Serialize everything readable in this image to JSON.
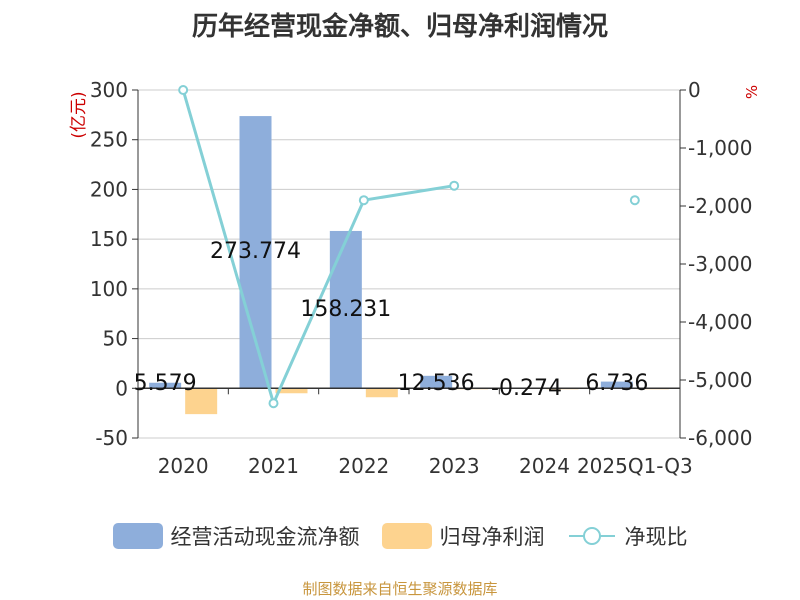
{
  "chart_data": {
    "type": "bar+line",
    "title": "历年经营现金净额、归母净利润情况",
    "categories": [
      "2020",
      "2021",
      "2022",
      "2023",
      "2024",
      "2025Q1-Q3"
    ],
    "series": [
      {
        "name": "经营活动现金流净额",
        "type": "bar",
        "axis": "left",
        "color": "#8eaedb",
        "values": [
          5.579,
          273.774,
          158.231,
          12.536,
          -0.274,
          6.736
        ],
        "labels": [
          "5.579",
          "273.774",
          "158.231",
          "12.536",
          "-0.274",
          "6.736"
        ]
      },
      {
        "name": "归母净利润",
        "type": "bar",
        "axis": "left",
        "color": "#fdd38f",
        "values": [
          -26,
          -5,
          -9,
          -1,
          -1,
          -1
        ]
      },
      {
        "name": "净现比",
        "type": "line",
        "axis": "right",
        "color": "#84d0d6",
        "values": [
          0,
          -5400,
          -1900,
          -1650,
          null,
          -1900
        ]
      }
    ],
    "y_left": {
      "label": "(亿元)",
      "ylim": [
        -50,
        300
      ],
      "ticks": [
        300,
        250,
        200,
        150,
        100,
        50,
        0,
        -50
      ],
      "tick_labels": [
        "300",
        "250",
        "200",
        "150",
        "100",
        "50",
        "0",
        "-50"
      ]
    },
    "y_right": {
      "label": "%",
      "ylim": [
        -6000,
        0
      ],
      "ticks": [
        0,
        -1000,
        -2000,
        -3000,
        -4000,
        -5000,
        -6000
      ],
      "tick_labels": [
        "0",
        "-1,000",
        "-2,000",
        "-3,000",
        "-4,000",
        "-5,000",
        "-6,000"
      ]
    },
    "grid": true,
    "legend_position": "bottom"
  },
  "legend": [
    {
      "label": "经营活动现金流净额",
      "color": "#8eaedb",
      "kind": "bar"
    },
    {
      "label": "归母净利润",
      "color": "#fdd38f",
      "kind": "bar"
    },
    {
      "label": "净现比",
      "color": "#84d0d6",
      "kind": "line"
    }
  ],
  "source": "制图数据来自恒生聚源数据库"
}
